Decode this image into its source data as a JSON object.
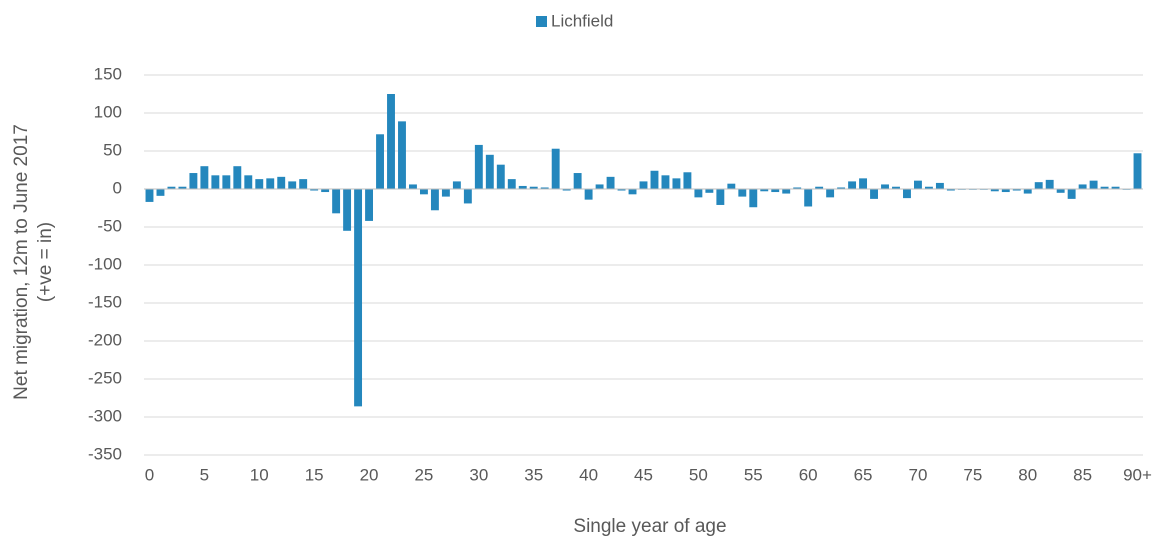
{
  "chart_data": {
    "type": "bar",
    "categories": [
      "0",
      null,
      null,
      null,
      null,
      "5",
      null,
      null,
      null,
      null,
      "10",
      null,
      null,
      null,
      null,
      "15",
      null,
      null,
      null,
      null,
      "20",
      null,
      null,
      null,
      null,
      "25",
      null,
      null,
      null,
      null,
      "30",
      null,
      null,
      null,
      null,
      "35",
      null,
      null,
      null,
      null,
      "40",
      null,
      null,
      null,
      null,
      "45",
      null,
      null,
      null,
      null,
      "50",
      null,
      null,
      null,
      null,
      "55",
      null,
      null,
      null,
      null,
      "60",
      null,
      null,
      null,
      null,
      "65",
      null,
      null,
      null,
      null,
      "70",
      null,
      null,
      null,
      null,
      "75",
      null,
      null,
      null,
      null,
      "80",
      null,
      null,
      null,
      null,
      "85",
      null,
      null,
      null,
      null,
      "90+"
    ],
    "series": [
      {
        "name": "Lichfield",
        "color": "#2487bd",
        "values": [
          -17,
          -9,
          3,
          3,
          21,
          30,
          18,
          18,
          30,
          18,
          13,
          14,
          16,
          10,
          13,
          -2,
          -4,
          -32,
          -55,
          -286,
          -42,
          72,
          125,
          89,
          6,
          -7,
          -28,
          -10,
          10,
          -19,
          58,
          45,
          32,
          13,
          4,
          3,
          2,
          53,
          -2,
          21,
          -14,
          6,
          16,
          -2,
          -7,
          10,
          24,
          18,
          14,
          22,
          -11,
          -5,
          -21,
          7,
          -10,
          -24,
          -3,
          -4,
          -6,
          2,
          -23,
          3,
          -11,
          2,
          10,
          14,
          -13,
          6,
          3,
          -12,
          11,
          3,
          8,
          -2,
          -1,
          -1,
          -1,
          -3,
          -4,
          -2,
          -6,
          9,
          12,
          -5,
          -13,
          6,
          11,
          3,
          3,
          -1,
          47
        ]
      }
    ],
    "x_label": "Single year of age",
    "y_label": [
      "Net migration, 12m to June 2017",
      "(+ve = in)"
    ],
    "ylim": [
      -350,
      150
    ],
    "yticks": [
      -350,
      -300,
      -250,
      -200,
      -150,
      -100,
      -50,
      0,
      50,
      100,
      150
    ],
    "grid": true,
    "legend": "top"
  }
}
